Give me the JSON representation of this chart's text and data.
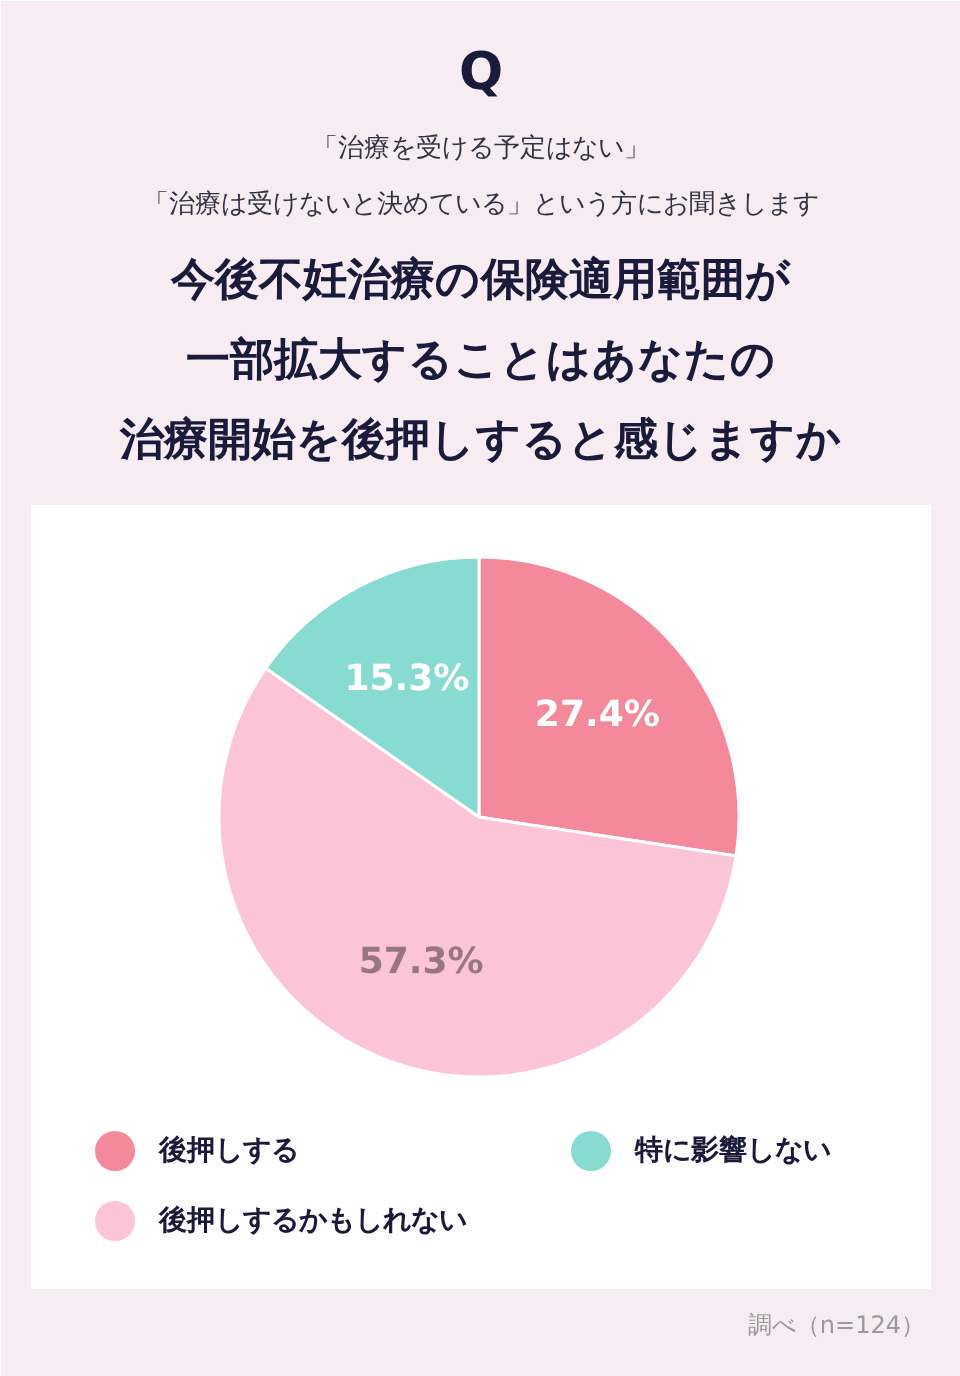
{
  "chart_data": {
    "type": "pie",
    "title": "今後不妊治療の保険適用範囲が一部拡大することはあなたの治療開始を後押しすると感じますか",
    "subtitle": "「治療を受ける予定はない」「治療は受けないと決めている」という方にお聞きします",
    "categories": [
      "後押しする",
      "後押しするかもしれない",
      "特に影響しない"
    ],
    "values": [
      27.4,
      57.3,
      15.3
    ],
    "colors": [
      "#f4899b",
      "#fcc5d7",
      "#88dbd0"
    ],
    "value_labels": [
      "27.4%",
      "57.3%",
      "15.3%"
    ],
    "legend": "bottom",
    "annotations": [
      "Q",
      "調べ（n=124）"
    ]
  }
}
